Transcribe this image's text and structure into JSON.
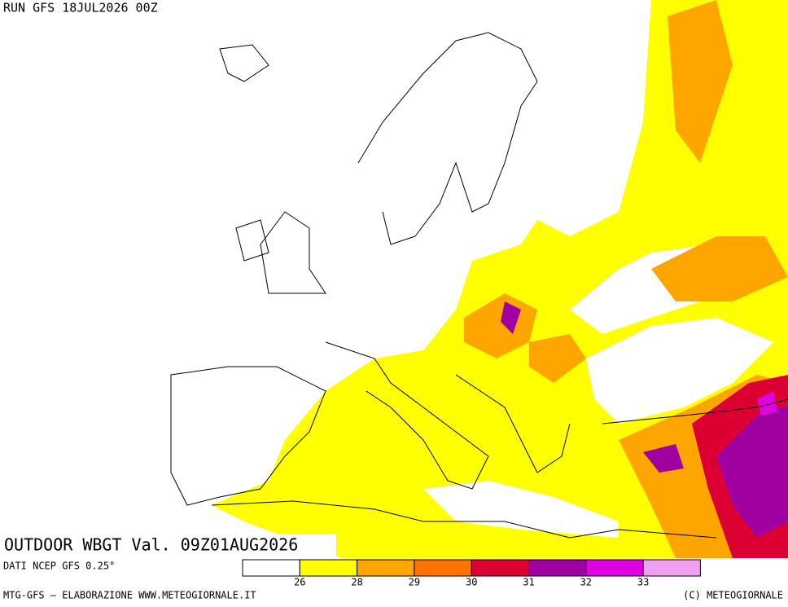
{
  "header": {
    "run": "RUN GFS 18JUL2026 00Z"
  },
  "map": {
    "title": "OUTDOOR WBGT Val. 09Z01AUG2026"
  },
  "legend": {
    "source": "DATI NCEP GFS 0.25°",
    "colors": [
      "#ffffff",
      "#ffff00",
      "#ffa500",
      "#ff7300",
      "#dc0032",
      "#a000a0",
      "#e100e1",
      "#f0a0f0"
    ],
    "labels": [
      26,
      28,
      29,
      30,
      31,
      32,
      33
    ]
  },
  "footer": {
    "left": "MTG-GFS — ELABORAZIONE WWW.METEOGIORNALE.IT",
    "right": "(C) METEOGIORNALE"
  }
}
